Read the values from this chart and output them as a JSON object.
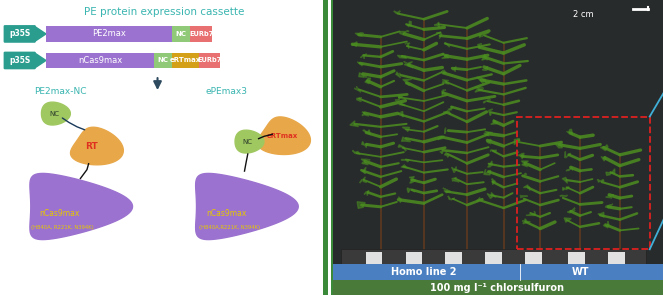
{
  "title": "PE protein expression cassette",
  "title_color": "#3ab5b0",
  "bg_color": "#ffffff",
  "right_panel_bg": "#2a2d2e",
  "cassette_row1": {
    "promoter": "p35S",
    "promoter_color": "#2a9d8f",
    "main_label": "PE2max",
    "main_color": "#9b72cf",
    "nc_color": "#90c978",
    "nc_label": "NC",
    "term_color": "#e87070",
    "term_label": "EURb7",
    "has_ert": false
  },
  "cassette_row2": {
    "promoter": "p35S",
    "promoter_color": "#2a9d8f",
    "main_label": "nCas9max",
    "main_color": "#9b72cf",
    "nc_color": "#90c978",
    "nc_label": "NC",
    "ert_color": "#d4a017",
    "ert_label": "eRTmax",
    "term_color": "#e87070",
    "term_label": "EURb7",
    "has_ert": true
  },
  "arrow_color": "#2d4a5e",
  "protein1_label": "PE2max-NC",
  "protein1_label_color": "#3ab5b0",
  "protein2_label": "ePEmax3",
  "protein2_label_color": "#3ab5b0",
  "ncas9_color": "#9b72cf",
  "ncas9_label": "nCas9max",
  "ncas9_sublabel1": "(H840A, R221K, N394K)",
  "ncas9_sublabel2": "(H840A,R221K, N394K)",
  "ncas9_label_color": "#e6c800",
  "rt_color": "#e8a84a",
  "rt_label": "RT",
  "rt_label_color": "#e03020",
  "nc_blob_color": "#a0c860",
  "nc_blob_label": "NC",
  "nc_blob_label_color": "#2a3a2a",
  "ertmax_color": "#e8a84a",
  "ertmax_label": "eRTmax",
  "ertmax_label_color": "#e03020",
  "bottom_label": "100 mg l⁻¹ chlorsulfuron",
  "bottom_bg_color": "#4a7a3a",
  "group_bar_color": "#4a7fc1",
  "group1_label": "Homo line 2",
  "group2_label": "WT",
  "scale_label": "2 cm",
  "red_box_color": "#dd2020",
  "blue_line_color": "#40b0d8",
  "divider_color": "#3a8a3a"
}
